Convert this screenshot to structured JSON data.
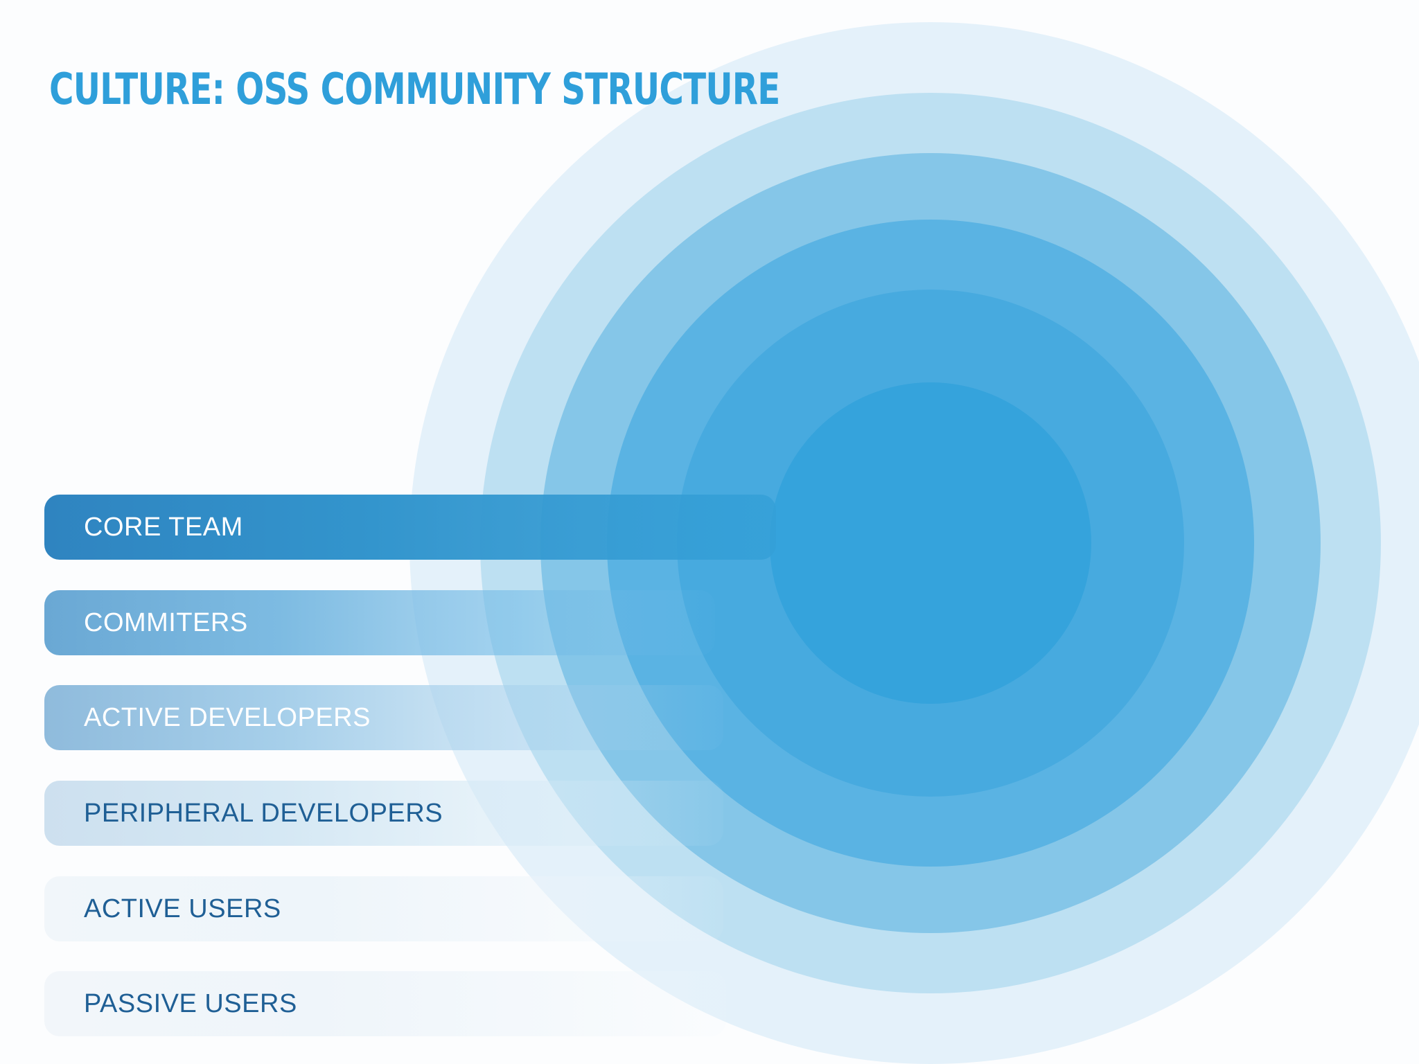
{
  "slide": {
    "title": "CULTURE: OSS COMMUNITY STRUCTURE"
  },
  "layers": [
    {
      "label": "CORE TEAM",
      "label_color": "#ffffff"
    },
    {
      "label": "COMMITERS",
      "label_color": "#ffffff"
    },
    {
      "label": "ACTIVE DEVELOPERS",
      "label_color": "#ffffff"
    },
    {
      "label": "PERIPHERAL DEVELOPERS",
      "label_color": "#1f5f95"
    },
    {
      "label": "ACTIVE USERS",
      "label_color": "#1f5f95"
    },
    {
      "label": "PASSIVE USERS",
      "label_color": "#1f5f95"
    }
  ],
  "ring_colors": [
    "#e4f1fa",
    "#bde0f2",
    "#85c6e8",
    "#5ab3e3",
    "#47aadf",
    "#35a3dc"
  ],
  "title_color": "#2f9fda"
}
